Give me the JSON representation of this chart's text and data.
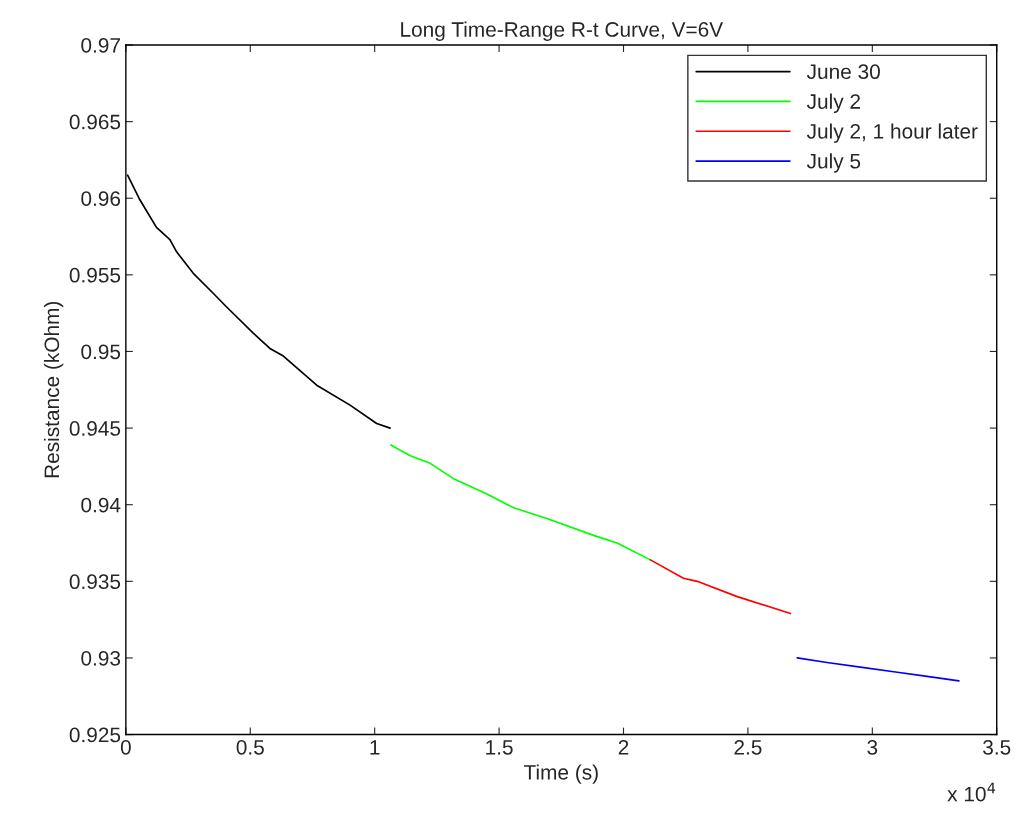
{
  "chart_data": {
    "type": "line",
    "title": "Long Time-Range R-t Curve, V=6V",
    "xlabel": "Time (s)",
    "ylabel": "Resistance (kOhm)",
    "annotations": [
      "x 10$^{4}$"
    ],
    "series": [
      {
        "name": "June 30",
        "color": "#000000",
        "x": [
          0.007,
          0.0563,
          0.123,
          0.177,
          0.204,
          0.271,
          0.351,
          0.405,
          0.512,
          0.579,
          0.633,
          0.767,
          0.901,
          1.008,
          1.062
        ],
        "values": [
          0.9615,
          0.9599,
          0.9581,
          0.9573,
          0.9565,
          0.9551,
          0.9538,
          0.9529,
          0.9512,
          0.9502,
          0.9497,
          0.9478,
          0.9465,
          0.9453,
          0.945
        ]
      },
      {
        "name": "July 2",
        "color": "#00ff00",
        "x": [
          1.065,
          1.143,
          1.223,
          1.317,
          1.451,
          1.558,
          1.692,
          1.88,
          1.974,
          2.108
        ],
        "values": [
          0.9439,
          0.9432,
          0.9427,
          0.9417,
          0.9407,
          0.9398,
          0.9391,
          0.938,
          0.9375,
          0.9364
        ]
      },
      {
        "name": "July 2, 1 hour later",
        "color": "#ff0000",
        "x": [
          2.108,
          2.241,
          2.296,
          2.457,
          2.671
        ],
        "values": [
          0.9364,
          0.9352,
          0.935,
          0.934,
          0.9329
        ]
      },
      {
        "name": "July 5",
        "color": "#0000ff",
        "x": [
          2.698,
          2.818,
          2.952,
          3.086,
          3.22,
          3.348
        ],
        "values": [
          0.93,
          0.9297,
          0.9294,
          0.9291,
          0.9288,
          0.9285
        ]
      }
    ],
    "xlim": [
      0,
      3.5
    ],
    "xticks": [
      0,
      0.5,
      1,
      1.5,
      2,
      2.5,
      3,
      3.5
    ],
    "ylim": [
      0.925,
      0.97
    ],
    "yticks": [
      {
        "value": 0.925,
        "label": "0.925"
      },
      {
        "value": 0.93,
        "label": "0.93"
      },
      {
        "value": 0.935,
        "label": "0.935"
      },
      {
        "value": 0.94,
        "label": "0.94"
      },
      {
        "value": 0.945,
        "label": "0.945"
      },
      {
        "value": 0.95,
        "label": "0.95"
      },
      {
        "value": 0.955,
        "label": "0.955"
      },
      {
        "value": 0.96,
        "label": "0.96"
      },
      {
        "value": 0.965,
        "label": "0.965"
      },
      {
        "value": 0.97,
        "label": "0.97"
      }
    ],
    "grid": false,
    "legend": "top right"
  }
}
